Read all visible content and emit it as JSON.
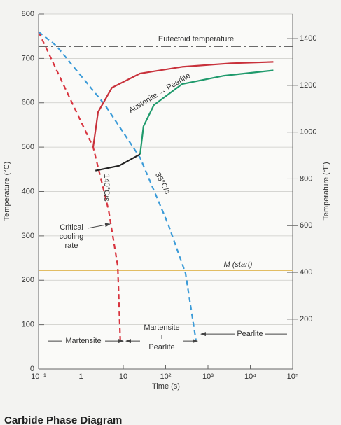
{
  "chart_data": {
    "type": "line",
    "xlabel": "Time (s)",
    "ylabel": "Temperature (°C)",
    "y2label": "Temperature (°F)",
    "caption": "Carbide Phase Diagram",
    "xlog": true,
    "xlim": [
      0.1,
      100000
    ],
    "xticks": [
      {
        "value": 0.1,
        "label": "10⁻¹"
      },
      1,
      10,
      {
        "value": 100,
        "label": "10²"
      },
      {
        "value": 1000,
        "label": "10³"
      },
      {
        "value": 10000,
        "label": "10⁴"
      },
      {
        "value": 100000,
        "label": "10⁵"
      }
    ],
    "ylim": [
      0,
      800
    ],
    "yticks": [
      0,
      100,
      200,
      300,
      400,
      500,
      600,
      700,
      800
    ],
    "y2lim": [
      -13,
      1505
    ],
    "y2ticks": [
      200,
      400,
      600,
      800,
      1000,
      1200,
      1400
    ],
    "grid": true,
    "series": [
      {
        "name": "140°C/s",
        "color": "#d8343f",
        "style": "dashed",
        "x": [
          0.1,
          0.55,
          1.95,
          4.5,
          7.4,
          8.5
        ],
        "values": [
          760,
          610,
          500,
          358,
          232,
          65
        ]
      },
      {
        "name": "35°C/s",
        "color": "#3b9bd8",
        "style": "dashed",
        "x": [
          0.1,
          0.26,
          3.7,
          25,
          115,
          295,
          520
        ],
        "values": [
          760,
          729,
          595,
          476,
          326,
          216,
          65
        ]
      },
      {
        "color": "#c8313b",
        "style": "solid",
        "x": [
          1.95,
          2.54,
          5.4,
          25,
          245,
          3500,
          35000
        ],
        "values": [
          500,
          579,
          634,
          666,
          681,
          689,
          692
        ]
      },
      {
        "color": "#1f9a6c",
        "style": "solid",
        "x": [
          25,
          30,
          53,
          245,
          2400,
          35000
        ],
        "values": [
          484,
          547,
          595,
          642,
          661,
          673
        ]
      },
      {
        "color": "#222222",
        "style": "solid",
        "x": [
          2.2,
          8,
          25
        ],
        "values": [
          447,
          458,
          484
        ]
      }
    ],
    "reference_lines": [
      {
        "label": "Eutectoid temperature",
        "value": 727,
        "color": "#555555"
      },
      {
        "label": "M (start)",
        "value": 222,
        "color": "#e2bd63"
      }
    ],
    "annotations": [
      {
        "text": "Austenite → Pearlite"
      },
      {
        "lines": [
          "Critical",
          "cooling",
          "rate"
        ]
      },
      {
        "text": "Martensite"
      },
      {
        "lines": [
          "Martensite",
          "+",
          "Pearlite"
        ]
      },
      {
        "text": "Pearlite"
      }
    ]
  }
}
